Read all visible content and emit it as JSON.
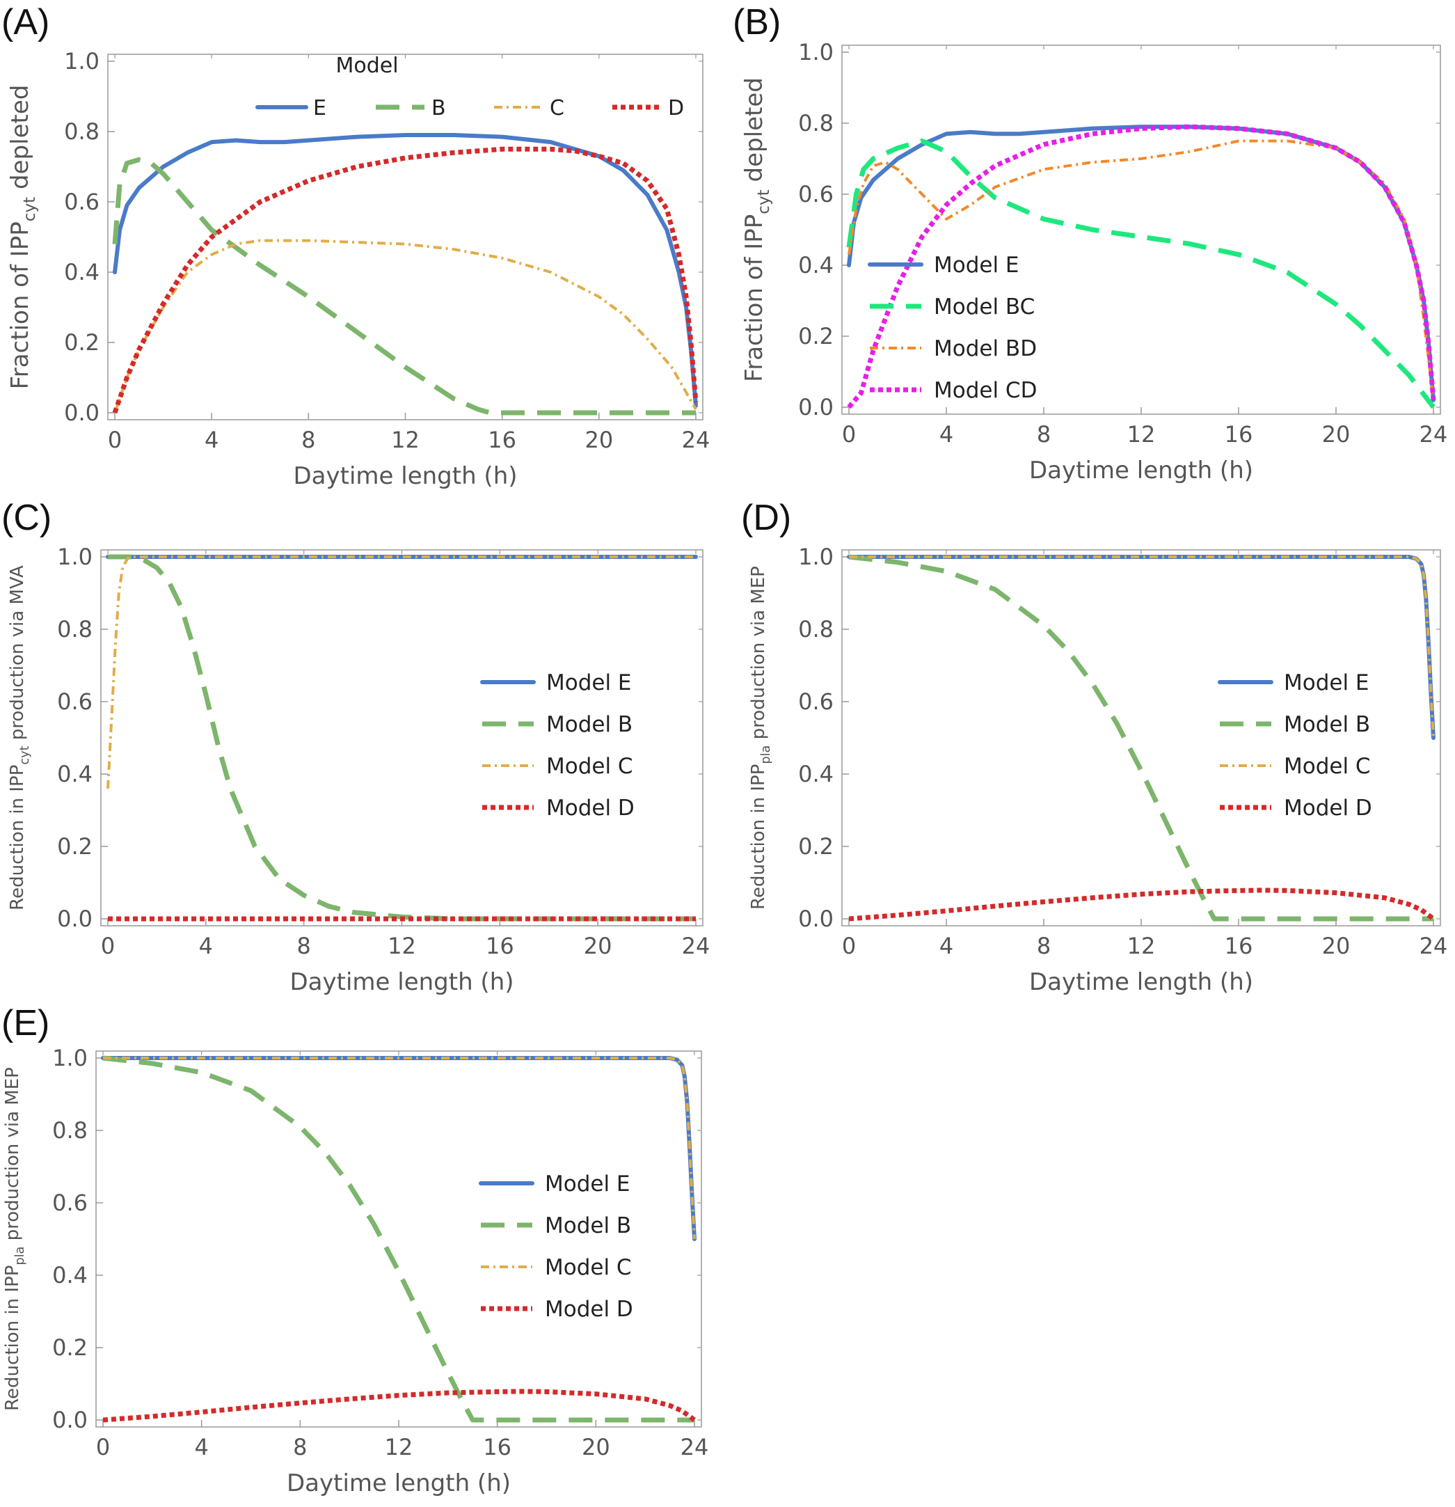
{
  "colors": {
    "E": "#4a7bc8",
    "B": "#7cb56b",
    "C": "#e0ad48",
    "D": "#d42a2a",
    "BC": "#1de87e",
    "BD": "#f2892a",
    "CD": "#e81ee8",
    "axis": "#999999",
    "tick_text": "#555555",
    "label_text": "#555555"
  },
  "chart_data": [
    {
      "id": "A",
      "panel_label": "(A)",
      "type": "line",
      "xlabel": "Daytime length (h)",
      "ylabel_main": "Fraction of IPP",
      "ylabel_sub": "cyt",
      "ylabel_tail": " depleted",
      "xlim": [
        0,
        24
      ],
      "ylim": [
        0,
        1
      ],
      "xticks": [
        "0",
        "4",
        "8",
        "12",
        "16",
        "20",
        "24"
      ],
      "yticks": [
        "0.0",
        "0.2",
        "0.4",
        "0.6",
        "0.8",
        "1.0"
      ],
      "legend": {
        "title": "Model",
        "layout": "horizontal",
        "position": "top-center"
      },
      "series": [
        {
          "key": "E",
          "name": "E",
          "style": "solid",
          "x": [
            0,
            0.2,
            0.5,
            1,
            2,
            3,
            4,
            5,
            6,
            7,
            8,
            10,
            12,
            14,
            16,
            18,
            20,
            21,
            22,
            22.8,
            23.3,
            23.6,
            23.8,
            24
          ],
          "y": [
            0.4,
            0.52,
            0.59,
            0.64,
            0.7,
            0.74,
            0.77,
            0.775,
            0.77,
            0.77,
            0.775,
            0.785,
            0.79,
            0.79,
            0.785,
            0.77,
            0.73,
            0.69,
            0.62,
            0.52,
            0.4,
            0.3,
            0.18,
            0.02
          ]
        },
        {
          "key": "B",
          "name": "B",
          "style": "dashed",
          "x": [
            0,
            0.2,
            0.5,
            1,
            1.5,
            2,
            3,
            4,
            5,
            6,
            8,
            10,
            12,
            14,
            15,
            15.5,
            16,
            20,
            24
          ],
          "y": [
            0.48,
            0.65,
            0.71,
            0.72,
            0.71,
            0.68,
            0.6,
            0.52,
            0.47,
            0.42,
            0.33,
            0.23,
            0.13,
            0.04,
            0.01,
            0.0,
            0.0,
            0.0,
            0.0
          ]
        },
        {
          "key": "C",
          "name": "C",
          "style": "dashdot",
          "x": [
            0,
            0.5,
            1,
            2,
            3,
            4,
            5,
            6,
            8,
            10,
            12,
            14,
            16,
            18,
            20,
            21,
            22,
            23,
            23.5,
            24
          ],
          "y": [
            0.0,
            0.1,
            0.18,
            0.3,
            0.4,
            0.45,
            0.48,
            0.49,
            0.49,
            0.485,
            0.48,
            0.465,
            0.44,
            0.4,
            0.33,
            0.28,
            0.21,
            0.13,
            0.07,
            0.01
          ]
        },
        {
          "key": "D",
          "name": "D",
          "style": "dotted",
          "x": [
            0,
            0.5,
            1,
            2,
            3,
            4,
            6,
            8,
            10,
            12,
            14,
            16,
            18,
            19,
            20,
            21,
            22,
            22.8,
            23.3,
            23.6,
            23.8,
            24
          ],
          "y": [
            0.0,
            0.1,
            0.18,
            0.31,
            0.42,
            0.5,
            0.6,
            0.66,
            0.7,
            0.725,
            0.74,
            0.75,
            0.75,
            0.745,
            0.73,
            0.71,
            0.66,
            0.58,
            0.45,
            0.33,
            0.2,
            0.03
          ]
        }
      ]
    },
    {
      "id": "B",
      "panel_label": "(B)",
      "type": "line",
      "xlabel": "Daytime length (h)",
      "ylabel_main": "Fraction of IPP",
      "ylabel_sub": "cyt",
      "ylabel_tail": " depleted",
      "xlim": [
        0,
        24
      ],
      "ylim": [
        0,
        1
      ],
      "xticks": [
        "0",
        "4",
        "8",
        "12",
        "16",
        "20",
        "24"
      ],
      "yticks": [
        "0.0",
        "0.2",
        "0.4",
        "0.6",
        "0.8",
        "1.0"
      ],
      "legend": {
        "title": "",
        "layout": "vertical",
        "position": "middle-left"
      },
      "series": [
        {
          "key": "E",
          "name": "Model E",
          "style": "solid",
          "x": [
            0,
            0.2,
            0.5,
            1,
            2,
            3,
            4,
            5,
            6,
            7,
            8,
            10,
            12,
            14,
            16,
            18,
            20,
            21,
            22,
            22.8,
            23.3,
            23.6,
            23.8,
            24
          ],
          "y": [
            0.4,
            0.52,
            0.59,
            0.64,
            0.7,
            0.74,
            0.77,
            0.775,
            0.77,
            0.77,
            0.775,
            0.785,
            0.79,
            0.79,
            0.785,
            0.77,
            0.73,
            0.69,
            0.62,
            0.52,
            0.4,
            0.3,
            0.18,
            0.02
          ]
        },
        {
          "key": "BC",
          "name": "Model BC",
          "style": "dashed",
          "x": [
            0,
            0.3,
            0.6,
            1,
            2,
            3,
            4,
            5,
            6,
            8,
            10,
            12,
            14,
            16,
            18,
            20,
            21,
            22,
            23,
            24
          ],
          "y": [
            0.45,
            0.6,
            0.67,
            0.7,
            0.73,
            0.75,
            0.72,
            0.65,
            0.59,
            0.53,
            0.5,
            0.48,
            0.46,
            0.43,
            0.38,
            0.29,
            0.23,
            0.16,
            0.09,
            0.0
          ]
        },
        {
          "key": "BD",
          "name": "Model BD",
          "style": "dashdot",
          "x": [
            0,
            0.3,
            0.6,
            1,
            1.5,
            2,
            3,
            4,
            5,
            6,
            8,
            10,
            12,
            14,
            16,
            18,
            19,
            20,
            21,
            22,
            22.8,
            23.3,
            23.6,
            24
          ],
          "y": [
            0.43,
            0.56,
            0.63,
            0.68,
            0.69,
            0.67,
            0.6,
            0.53,
            0.57,
            0.62,
            0.67,
            0.69,
            0.7,
            0.72,
            0.75,
            0.75,
            0.74,
            0.73,
            0.69,
            0.63,
            0.53,
            0.4,
            0.25,
            0.02
          ]
        },
        {
          "key": "CD",
          "name": "Model CD",
          "style": "dotted",
          "x": [
            0,
            0.5,
            1,
            2,
            3,
            4,
            5,
            6,
            8,
            10,
            12,
            14,
            16,
            18,
            20,
            21,
            22,
            22.8,
            23.3,
            23.6,
            23.8,
            24
          ],
          "y": [
            0.0,
            0.04,
            0.16,
            0.34,
            0.48,
            0.57,
            0.63,
            0.68,
            0.74,
            0.77,
            0.785,
            0.79,
            0.785,
            0.77,
            0.73,
            0.69,
            0.62,
            0.52,
            0.4,
            0.3,
            0.18,
            0.02
          ]
        }
      ]
    },
    {
      "id": "C",
      "panel_label": "(C)",
      "type": "line",
      "xlabel": "Daytime length (h)",
      "ylabel_main": "Reduction in IPP",
      "ylabel_sub": "cyt",
      "ylabel_tail": " production via MVA",
      "xlim": [
        0,
        24
      ],
      "ylim": [
        0,
        1
      ],
      "xticks": [
        "0",
        "4",
        "8",
        "12",
        "16",
        "20",
        "24"
      ],
      "yticks": [
        "0.0",
        "0.2",
        "0.4",
        "0.6",
        "0.8",
        "1.0"
      ],
      "legend": {
        "title": "",
        "layout": "vertical",
        "position": "middle-right"
      },
      "series": [
        {
          "key": "E",
          "name": "Model E",
          "style": "solid",
          "x": [
            0,
            24
          ],
          "y": [
            1.0,
            1.0
          ]
        },
        {
          "key": "B",
          "name": "Model B",
          "style": "dashed",
          "x": [
            0,
            1,
            1.5,
            2,
            2.5,
            3,
            3.5,
            4,
            4.5,
            5,
            6,
            7,
            8,
            9,
            10,
            12,
            14,
            24
          ],
          "y": [
            1.0,
            1.0,
            0.99,
            0.97,
            0.93,
            0.86,
            0.75,
            0.62,
            0.48,
            0.36,
            0.2,
            0.11,
            0.065,
            0.035,
            0.018,
            0.005,
            0.0,
            0.0
          ]
        },
        {
          "key": "C",
          "name": "Model C",
          "style": "dashdot",
          "x": [
            0,
            0.15,
            0.3,
            0.45,
            0.6,
            0.8,
            1,
            24
          ],
          "y": [
            0.36,
            0.55,
            0.75,
            0.9,
            0.97,
            0.995,
            1.0,
            1.0
          ]
        },
        {
          "key": "D",
          "name": "Model D",
          "style": "dotted",
          "x": [
            0,
            24
          ],
          "y": [
            0.0,
            0.0
          ]
        }
      ]
    },
    {
      "id": "D",
      "panel_label": "(D)",
      "type": "line",
      "xlabel": "Daytime length (h)",
      "ylabel_main": "Reduction in IPP",
      "ylabel_sub": "pla",
      "ylabel_tail": " production via MEP",
      "xlim": [
        0,
        24
      ],
      "ylim": [
        0,
        1
      ],
      "xticks": [
        "0",
        "4",
        "8",
        "12",
        "16",
        "20",
        "24"
      ],
      "yticks": [
        "0.0",
        "0.2",
        "0.4",
        "0.6",
        "0.8",
        "1.0"
      ],
      "legend": {
        "title": "",
        "layout": "vertical",
        "position": "middle-right"
      },
      "series": [
        {
          "key": "E",
          "name": "Model E",
          "style": "solid",
          "x": [
            0,
            23,
            23.3,
            23.5,
            23.6,
            23.7,
            23.8,
            23.9,
            24
          ],
          "y": [
            1.0,
            1.0,
            0.995,
            0.98,
            0.95,
            0.88,
            0.76,
            0.62,
            0.5
          ]
        },
        {
          "key": "B",
          "name": "Model B",
          "style": "dashed",
          "x": [
            0,
            2,
            4,
            6,
            8,
            9,
            10,
            11,
            12,
            13,
            14,
            14.6,
            15,
            20,
            24
          ],
          "y": [
            1.0,
            0.985,
            0.96,
            0.91,
            0.81,
            0.74,
            0.65,
            0.54,
            0.41,
            0.27,
            0.13,
            0.05,
            0.0,
            0.0,
            0.0
          ]
        },
        {
          "key": "C",
          "name": "Model C",
          "style": "dashdot",
          "x": [
            0,
            23,
            23.3,
            23.5,
            23.6,
            23.7,
            23.8,
            23.9,
            24
          ],
          "y": [
            1.0,
            1.0,
            0.995,
            0.98,
            0.95,
            0.88,
            0.76,
            0.62,
            0.5
          ]
        },
        {
          "key": "D",
          "name": "Model D",
          "style": "dotted",
          "x": [
            0,
            2,
            4,
            6,
            8,
            10,
            12,
            14,
            16,
            17,
            18,
            20,
            22,
            23,
            23.5,
            24
          ],
          "y": [
            0.0,
            0.01,
            0.022,
            0.035,
            0.047,
            0.058,
            0.068,
            0.075,
            0.078,
            0.079,
            0.078,
            0.072,
            0.058,
            0.04,
            0.025,
            0.0
          ]
        }
      ]
    },
    {
      "id": "E",
      "panel_label": "(E)",
      "type": "line",
      "xlabel": "Daytime length (h)",
      "ylabel_main": "Reduction in IPP",
      "ylabel_sub": "pla",
      "ylabel_tail": " production via MEP",
      "xlim": [
        0,
        24
      ],
      "ylim": [
        0,
        1
      ],
      "xticks": [
        "0",
        "4",
        "8",
        "12",
        "16",
        "20",
        "24"
      ],
      "yticks": [
        "0.0",
        "0.2",
        "0.4",
        "0.6",
        "0.8",
        "1.0"
      ],
      "legend": {
        "title": "",
        "layout": "vertical",
        "position": "middle-right"
      },
      "series": [
        {
          "key": "E",
          "name": "Model E",
          "style": "solid",
          "x": [
            0,
            23,
            23.3,
            23.5,
            23.6,
            23.7,
            23.8,
            23.9,
            24
          ],
          "y": [
            1.0,
            1.0,
            0.995,
            0.98,
            0.95,
            0.88,
            0.76,
            0.62,
            0.5
          ]
        },
        {
          "key": "B",
          "name": "Model B",
          "style": "dashed",
          "x": [
            0,
            2,
            4,
            6,
            8,
            9,
            10,
            11,
            12,
            13,
            14,
            14.6,
            15,
            20,
            24
          ],
          "y": [
            1.0,
            0.985,
            0.96,
            0.91,
            0.81,
            0.74,
            0.65,
            0.54,
            0.41,
            0.27,
            0.13,
            0.05,
            0.0,
            0.0,
            0.0
          ]
        },
        {
          "key": "C",
          "name": "Model C",
          "style": "dashdot",
          "x": [
            0,
            23,
            23.3,
            23.5,
            23.6,
            23.7,
            23.8,
            23.9,
            24
          ],
          "y": [
            1.0,
            1.0,
            0.995,
            0.98,
            0.95,
            0.88,
            0.76,
            0.62,
            0.5
          ]
        },
        {
          "key": "D",
          "name": "Model D",
          "style": "dotted",
          "x": [
            0,
            2,
            4,
            6,
            8,
            10,
            12,
            14,
            16,
            17,
            18,
            20,
            22,
            23,
            23.5,
            24
          ],
          "y": [
            0.0,
            0.01,
            0.022,
            0.035,
            0.047,
            0.058,
            0.068,
            0.075,
            0.078,
            0.079,
            0.078,
            0.072,
            0.058,
            0.04,
            0.025,
            0.0
          ]
        }
      ]
    }
  ]
}
